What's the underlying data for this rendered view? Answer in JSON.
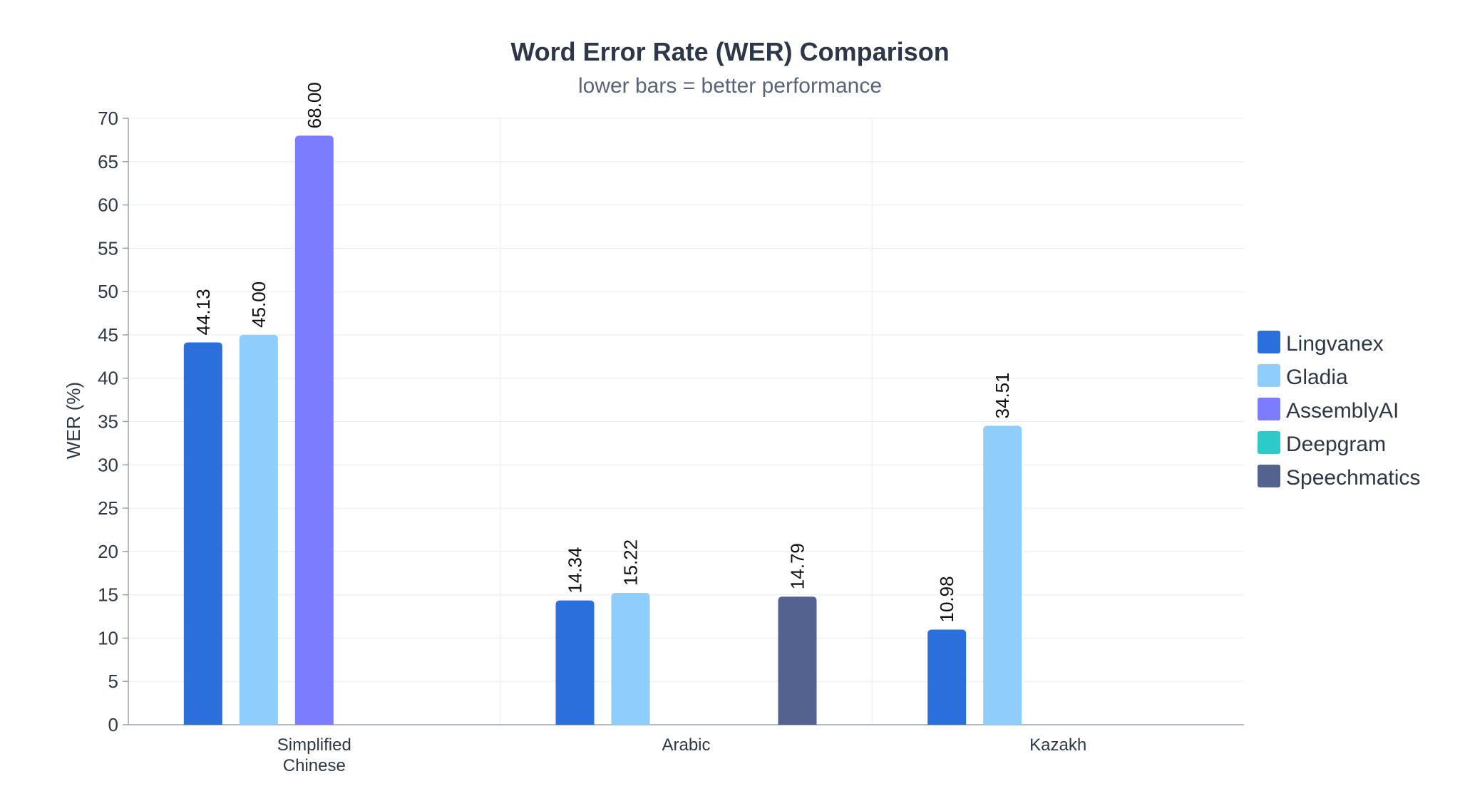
{
  "chart_data": {
    "type": "bar",
    "title": "Word Error Rate (WER) Comparison",
    "subtitle": "lower bars = better performance",
    "xlabel": "",
    "ylabel": "WER (%)",
    "ylim": [
      0,
      70
    ],
    "yticks": [
      0,
      5,
      10,
      15,
      20,
      25,
      30,
      35,
      40,
      45,
      50,
      55,
      60,
      65,
      70
    ],
    "grid": true,
    "legend_position": "right",
    "categories": [
      [
        "Simplified",
        "Chinese"
      ],
      [
        "Arabic"
      ],
      [
        "Kazakh"
      ]
    ],
    "series": [
      {
        "name": "Lingvanex",
        "color": "#2a6fdb",
        "values": [
          44.13,
          14.34,
          10.98
        ],
        "labels": [
          "44.13",
          "14.34",
          "10.98"
        ]
      },
      {
        "name": "Gladia",
        "color": "#8ecdfc",
        "values": [
          45.0,
          15.22,
          34.51
        ],
        "labels": [
          "45.00",
          "15.22",
          "34.51"
        ]
      },
      {
        "name": "AssemblyAI",
        "color": "#7b7cff",
        "values": [
          68.0,
          null,
          null
        ],
        "labels": [
          "68.00",
          null,
          null
        ]
      },
      {
        "name": "Deepgram",
        "color": "#2ec9c9",
        "values": [
          null,
          null,
          null
        ],
        "labels": [
          null,
          null,
          null
        ]
      },
      {
        "name": "Speechmatics",
        "color": "#53628f",
        "values": [
          null,
          14.79,
          null
        ],
        "labels": [
          null,
          "14.79",
          null
        ]
      }
    ]
  }
}
